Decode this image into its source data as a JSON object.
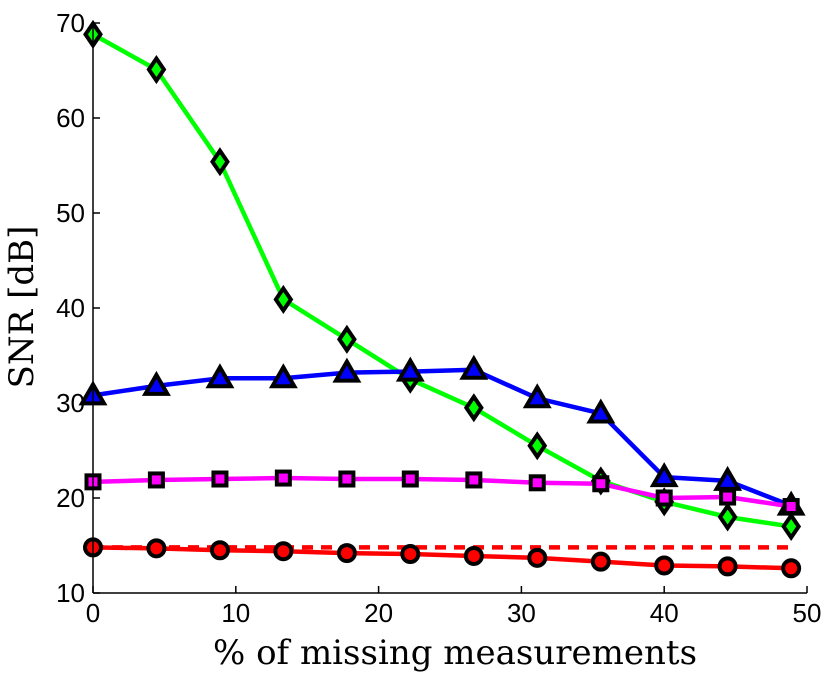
{
  "chart_data": {
    "type": "line",
    "xlabel": "% of missing measurements",
    "ylabel": "SNR [dB]",
    "xlim": [
      0,
      50
    ],
    "ylim": [
      10,
      70
    ],
    "xticks": [
      0,
      10,
      20,
      30,
      40,
      50
    ],
    "yticks": [
      10,
      20,
      30,
      40,
      50,
      60,
      70
    ],
    "grid": false,
    "legend": "none",
    "x": [
      0,
      4.44,
      8.89,
      13.33,
      17.78,
      22.22,
      26.67,
      31.11,
      35.56,
      40,
      44.44,
      48.89
    ],
    "series": [
      {
        "color": "#00ff00",
        "marker": "diamond",
        "line_style": "solid",
        "values": [
          68.8,
          65.1,
          55.4,
          40.9,
          36.7,
          32.5,
          29.5,
          25.5,
          21.8,
          19.6,
          18.0,
          17.0
        ]
      },
      {
        "color": "#0000ff",
        "marker": "triangle",
        "line_style": "solid",
        "values": [
          30.8,
          31.8,
          32.6,
          32.6,
          33.2,
          33.3,
          33.5,
          30.5,
          28.9,
          22.2,
          21.8,
          19.2
        ]
      },
      {
        "color": "#ff00ff",
        "marker": "square",
        "line_style": "solid",
        "values": [
          21.7,
          21.9,
          22.0,
          22.1,
          22.0,
          22.0,
          21.9,
          21.6,
          21.5,
          20.0,
          20.1,
          19.1
        ]
      },
      {
        "color": "#ff0000",
        "marker": "circle",
        "line_style": "solid",
        "values": [
          14.8,
          14.7,
          14.5,
          14.4,
          14.2,
          14.1,
          13.9,
          13.7,
          13.3,
          12.9,
          12.8,
          12.6
        ]
      },
      {
        "color": "#ff0000",
        "marker": "none",
        "line_style": "dashed",
        "values": [
          14.8,
          14.8,
          14.8,
          14.8,
          14.8,
          14.8,
          14.8,
          14.8,
          14.8,
          14.8,
          14.8,
          14.8
        ]
      }
    ]
  }
}
